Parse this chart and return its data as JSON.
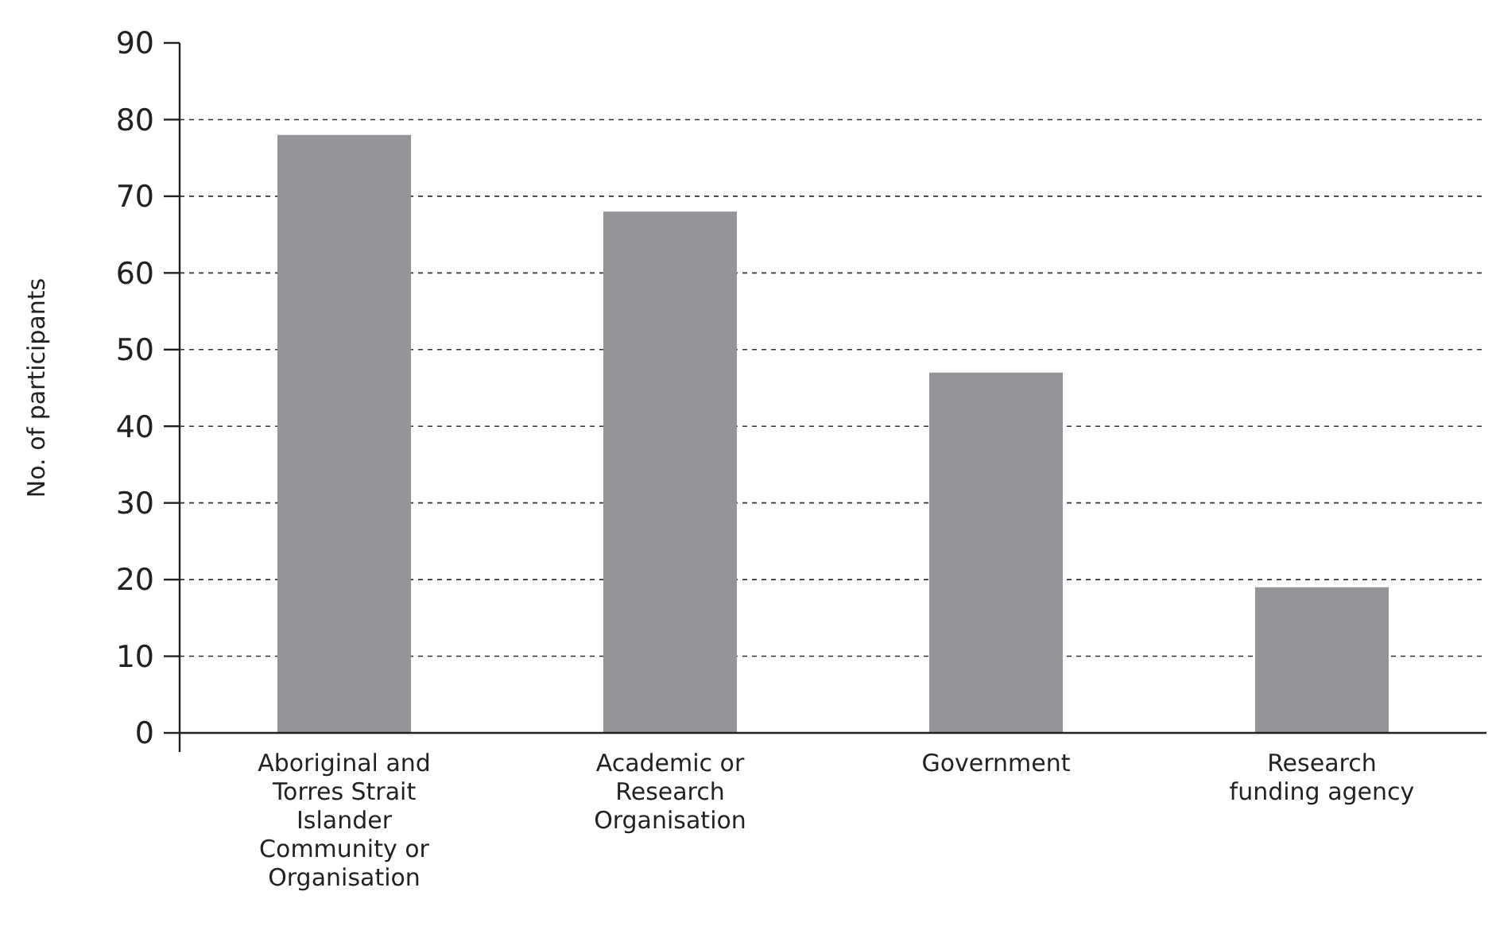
{
  "chart_data": {
    "type": "bar",
    "ylabel": "No. of participants",
    "categories": [
      "Aboriginal and Torres Strait Islander Community or Organisation",
      "Academic or Research Organisation",
      "Government",
      "Research funding agency"
    ],
    "values": [
      78,
      68,
      47,
      19
    ],
    "color": "#939598",
    "ylim": [
      0,
      90
    ],
    "yticks": [
      0,
      10,
      20,
      30,
      40,
      50,
      60,
      70,
      80,
      90
    ],
    "grid": "y"
  }
}
